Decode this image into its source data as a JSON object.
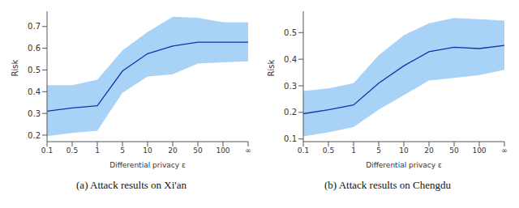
{
  "chart_data": [
    {
      "type": "line",
      "title": "(a) Attack results on Xi'an",
      "x_label": "Differential privacy ε",
      "y_label": "Risk",
      "categories": [
        "0.1",
        "0.5",
        "1",
        "5",
        "10",
        "20",
        "50",
        "100",
        "∞"
      ],
      "series": [
        {
          "color": "#1a2fb0",
          "values": [
            0.31,
            0.325,
            0.335,
            0.495,
            0.575,
            0.61,
            0.628,
            0.628,
            0.628
          ]
        }
      ],
      "band": {
        "color": "#a9d2f7",
        "lower": [
          0.195,
          0.21,
          0.22,
          0.395,
          0.47,
          0.48,
          0.53,
          0.535,
          0.54
        ],
        "upper": [
          0.43,
          0.43,
          0.455,
          0.59,
          0.675,
          0.745,
          0.74,
          0.72,
          0.72
        ]
      },
      "ylim": [
        0.17,
        0.77
      ],
      "yticks": [
        0.2,
        0.3,
        0.4,
        0.5,
        0.6,
        0.7
      ]
    },
    {
      "type": "line",
      "title": "(b) Attack results on Chengdu",
      "x_label": "Differential privacy ε",
      "y_label": "Risk",
      "categories": [
        "0.1",
        "0.5",
        "1",
        "5",
        "10",
        "20",
        "50",
        "100",
        "∞"
      ],
      "series": [
        {
          "color": "#1a2fb0",
          "values": [
            0.195,
            0.21,
            0.228,
            0.31,
            0.375,
            0.428,
            0.445,
            0.44,
            0.452
          ]
        }
      ],
      "band": {
        "color": "#a9d2f7",
        "lower": [
          0.11,
          0.125,
          0.145,
          0.21,
          0.265,
          0.32,
          0.33,
          0.34,
          0.36
        ],
        "upper": [
          0.28,
          0.29,
          0.31,
          0.415,
          0.49,
          0.535,
          0.555,
          0.55,
          0.545
        ]
      },
      "ylim": [
        0.09,
        0.58
      ],
      "yticks": [
        0.1,
        0.2,
        0.3,
        0.4,
        0.5
      ]
    }
  ]
}
